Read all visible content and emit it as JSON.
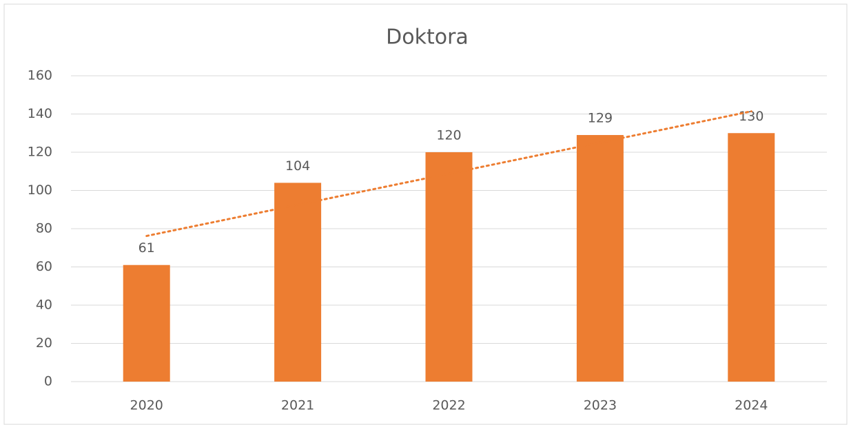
{
  "chart_data": {
    "type": "bar",
    "title": "Doktora",
    "categories": [
      "2020",
      "2021",
      "2022",
      "2023",
      "2024"
    ],
    "values": [
      61,
      104,
      120,
      129,
      130
    ],
    "color": "#ed7d31",
    "ylim": [
      0,
      160
    ],
    "yticks": [
      0,
      20,
      40,
      60,
      80,
      100,
      120,
      140,
      160
    ],
    "grid": true,
    "trendline": "linear",
    "data_labels": true
  }
}
